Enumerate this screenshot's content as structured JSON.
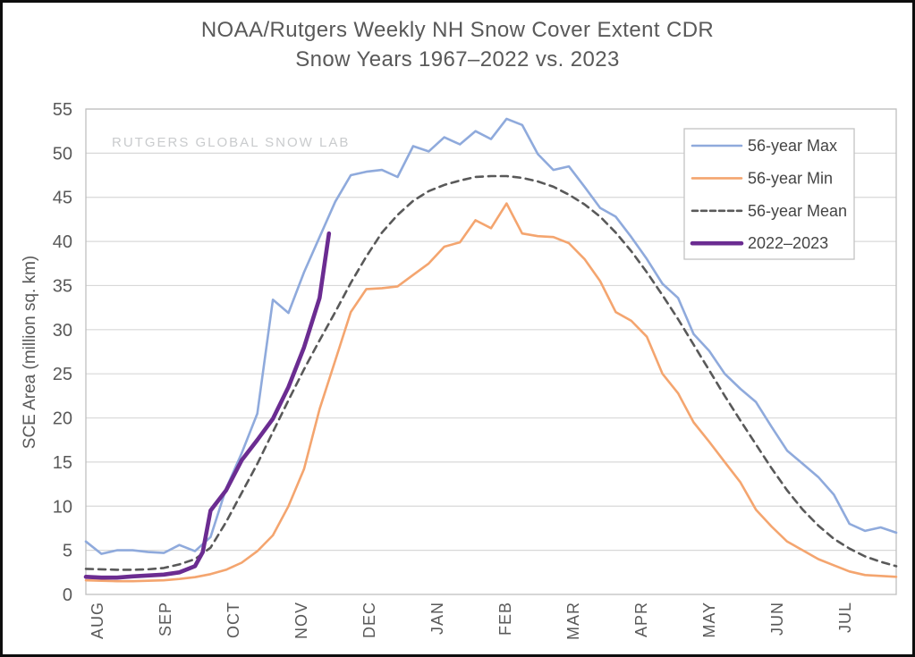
{
  "header": {
    "title_line1": "NOAA/Rutgers Weekly NH Snow Cover Extent CDR",
    "title_line2": "Snow Years 1967–2022 vs. 2023"
  },
  "watermark": "RUTGERS GLOBAL SNOW LAB",
  "chart_data": {
    "type": "line",
    "title": "NOAA/Rutgers Weekly NH Snow Cover Extent CDR — Snow Years 1967–2022 vs. 2023",
    "ylabel": "SCE Area (million sq. km)",
    "ylim": [
      0,
      55
    ],
    "ytick_step": 5,
    "grid": "horizontal",
    "legend_position": "top-right",
    "x_months": [
      "AUG",
      "SEP",
      "OCT",
      "NOV",
      "DEC",
      "JAN",
      "FEB",
      "MAR",
      "APR",
      "MAY",
      "JUN",
      "JUL"
    ],
    "weeks_total": 52,
    "colors": {
      "max": "#8FAADC",
      "min": "#F4A56F",
      "mean": "#595959",
      "current": "#6B2C91",
      "gridline": "#D8D8D8",
      "plot_border": "#BFBFBF",
      "text": "#595959",
      "legend_text": "#454545",
      "watermark": "#C9CBCD"
    },
    "series": [
      {
        "name": "56-year Max",
        "color": "#8FAADC",
        "width": 2.6,
        "dash": null,
        "values": [
          6.0,
          4.6,
          5.0,
          5.0,
          4.8,
          4.7,
          5.6,
          4.9,
          6.5,
          12.0,
          16.0,
          20.5,
          33.4,
          31.9,
          36.5,
          40.5,
          44.5,
          47.5,
          47.9,
          48.1,
          47.3,
          50.8,
          50.2,
          51.8,
          51.0,
          52.5,
          51.6,
          53.9,
          53.2,
          49.9,
          48.1,
          48.5,
          46.2,
          43.8,
          42.8,
          40.5,
          38.0,
          35.2,
          33.6,
          29.5,
          27.6,
          25.0,
          23.3,
          21.8,
          19.0,
          16.3,
          14.8,
          13.3,
          11.3,
          8.0,
          7.2,
          7.6,
          7.0
        ]
      },
      {
        "name": "56-year Min",
        "color": "#F4A56F",
        "width": 2.6,
        "dash": null,
        "values": [
          1.6,
          1.55,
          1.5,
          1.5,
          1.55,
          1.6,
          1.75,
          1.95,
          2.3,
          2.8,
          3.6,
          4.9,
          6.7,
          10.0,
          14.2,
          21.0,
          26.5,
          32.0,
          34.6,
          34.7,
          34.9,
          36.2,
          37.5,
          39.4,
          39.9,
          42.4,
          41.5,
          44.3,
          40.9,
          40.6,
          40.5,
          39.8,
          38.0,
          35.5,
          32.0,
          31.0,
          29.2,
          25.0,
          22.8,
          19.5,
          17.3,
          15.0,
          12.7,
          9.6,
          7.7,
          6.0,
          5.0,
          4.0,
          3.3,
          2.6,
          2.2,
          2.1,
          2.0
        ]
      },
      {
        "name": "56-year Mean",
        "color": "#595959",
        "width": 2.6,
        "dash": "8,6",
        "values": [
          2.9,
          2.85,
          2.8,
          2.8,
          2.85,
          3.0,
          3.4,
          4.0,
          5.3,
          8.2,
          11.5,
          14.8,
          18.4,
          22.0,
          25.5,
          28.8,
          32.0,
          35.3,
          38.3,
          41.0,
          43.0,
          44.6,
          45.7,
          46.4,
          46.9,
          47.3,
          47.4,
          47.4,
          47.2,
          46.8,
          46.2,
          45.3,
          44.2,
          42.8,
          41.0,
          38.9,
          36.5,
          33.9,
          31.2,
          28.3,
          25.4,
          22.5,
          19.7,
          17.0,
          14.3,
          11.8,
          9.6,
          7.8,
          6.3,
          5.2,
          4.3,
          3.7,
          3.2
        ]
      },
      {
        "name": "2022–2023",
        "color": "#6B2C91",
        "width": 4.6,
        "dash": null,
        "points": [
          [
            0,
            2.0
          ],
          [
            1,
            1.9
          ],
          [
            2,
            1.9
          ],
          [
            3,
            2.05
          ],
          [
            4,
            2.15
          ],
          [
            5,
            2.25
          ],
          [
            6,
            2.5
          ],
          [
            7,
            3.2
          ],
          [
            7.5,
            4.8
          ],
          [
            8,
            9.5
          ],
          [
            9,
            11.8
          ],
          [
            10,
            15.2
          ],
          [
            11,
            17.5
          ],
          [
            12,
            19.9
          ],
          [
            13,
            23.5
          ],
          [
            14,
            28.0
          ],
          [
            15,
            33.6
          ],
          [
            15.6,
            40.9
          ]
        ]
      }
    ]
  }
}
